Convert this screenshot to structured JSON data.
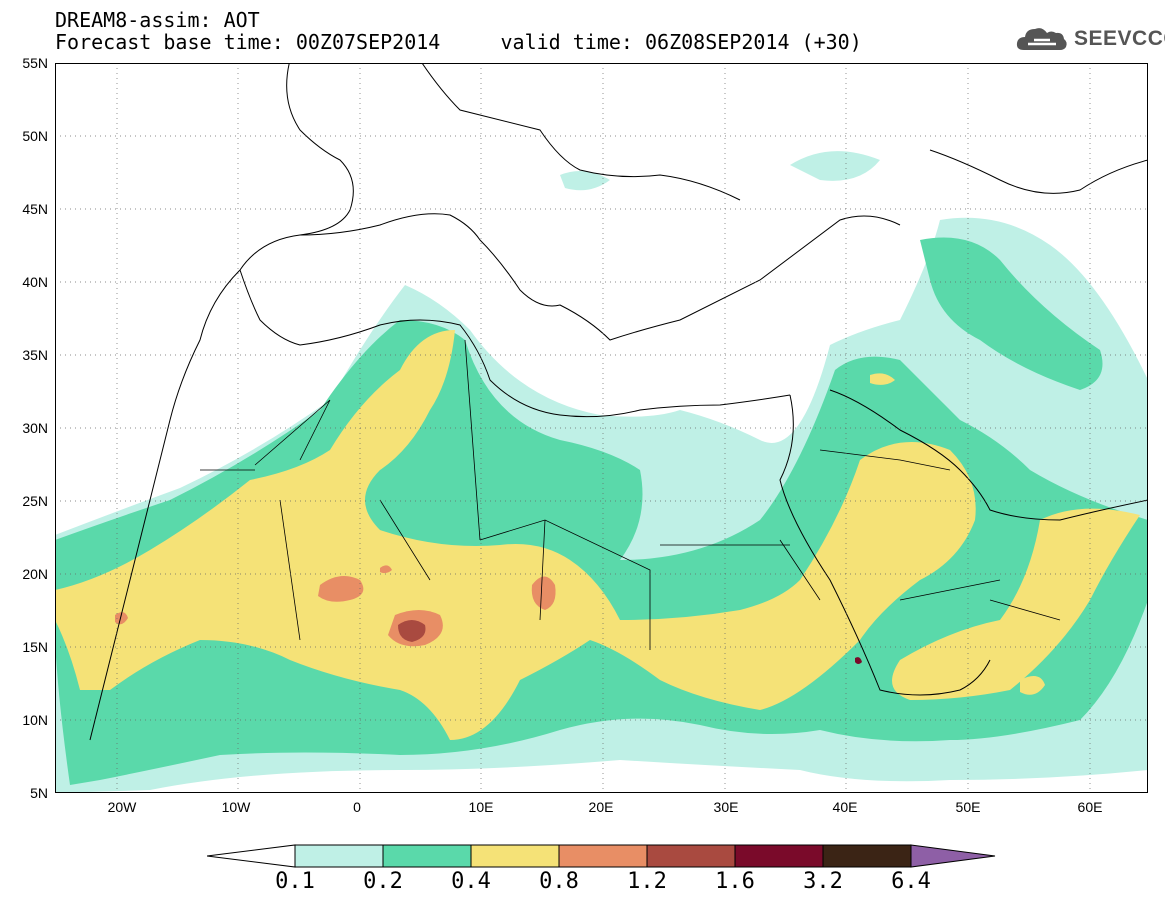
{
  "header": {
    "line1": "DREAM8-assim: AOT",
    "line2": "Forecast base time: 00Z07SEP2014     valid time: 06Z08SEP2014 (+30)"
  },
  "logo": {
    "icon": "cloud-icon",
    "text": "SEEVCCC"
  },
  "map": {
    "lat_labels": [
      "55N",
      "50N",
      "45N",
      "40N",
      "35N",
      "30N",
      "25N",
      "20N",
      "15N",
      "10N",
      "5N"
    ],
    "lon_labels": [
      "20W",
      "10W",
      "0",
      "10E",
      "20E",
      "30E",
      "40E",
      "50E",
      "60E"
    ],
    "lat_range": [
      5,
      55
    ],
    "lon_range": [
      -25,
      65
    ]
  },
  "colorbar": {
    "labels": [
      "0.1",
      "0.2",
      "0.4",
      "0.8",
      "1.2",
      "1.6",
      "3.2",
      "6.4"
    ],
    "colors": [
      "#ffffff",
      "#bff0e6",
      "#5ad9aa",
      "#f5e277",
      "#e88e65",
      "#a94a40",
      "#7a0a2a",
      "#3b2415",
      "#8e5fa6"
    ]
  }
}
